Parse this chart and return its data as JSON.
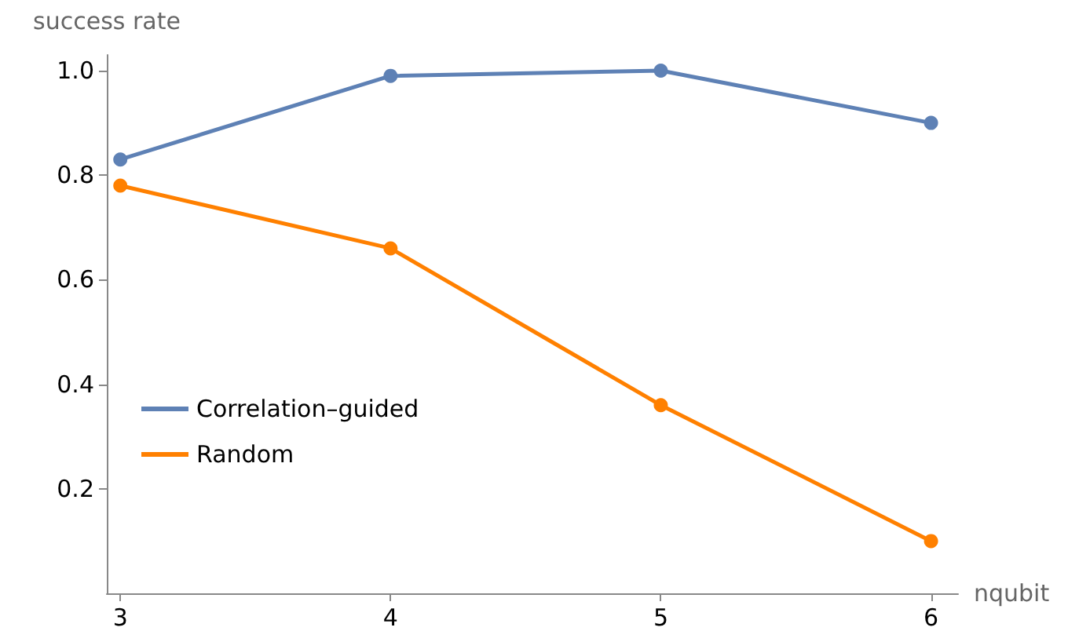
{
  "chart_data": {
    "type": "line",
    "xlabel": "nqubit",
    "ylabel": "success rate",
    "x": [
      3,
      4,
      5,
      6
    ],
    "series": [
      {
        "name": "Correlation–guided",
        "color": "#5e81b5",
        "values": [
          0.83,
          0.99,
          1.0,
          0.9
        ]
      },
      {
        "name": "Random",
        "color": "#ff8000",
        "values": [
          0.78,
          0.66,
          0.36,
          0.1
        ]
      }
    ],
    "xlim": [
      2.95,
      6.1
    ],
    "xticks": [
      3,
      4,
      5,
      6
    ],
    "ylim": [
      0,
      1.03
    ],
    "yticks": [
      0.2,
      0.4,
      0.6,
      0.8,
      {
        "value": 1,
        "label": "1.0"
      }
    ],
    "grid": false,
    "legend": "left",
    "marker": "circle",
    "line_style": "solid"
  }
}
